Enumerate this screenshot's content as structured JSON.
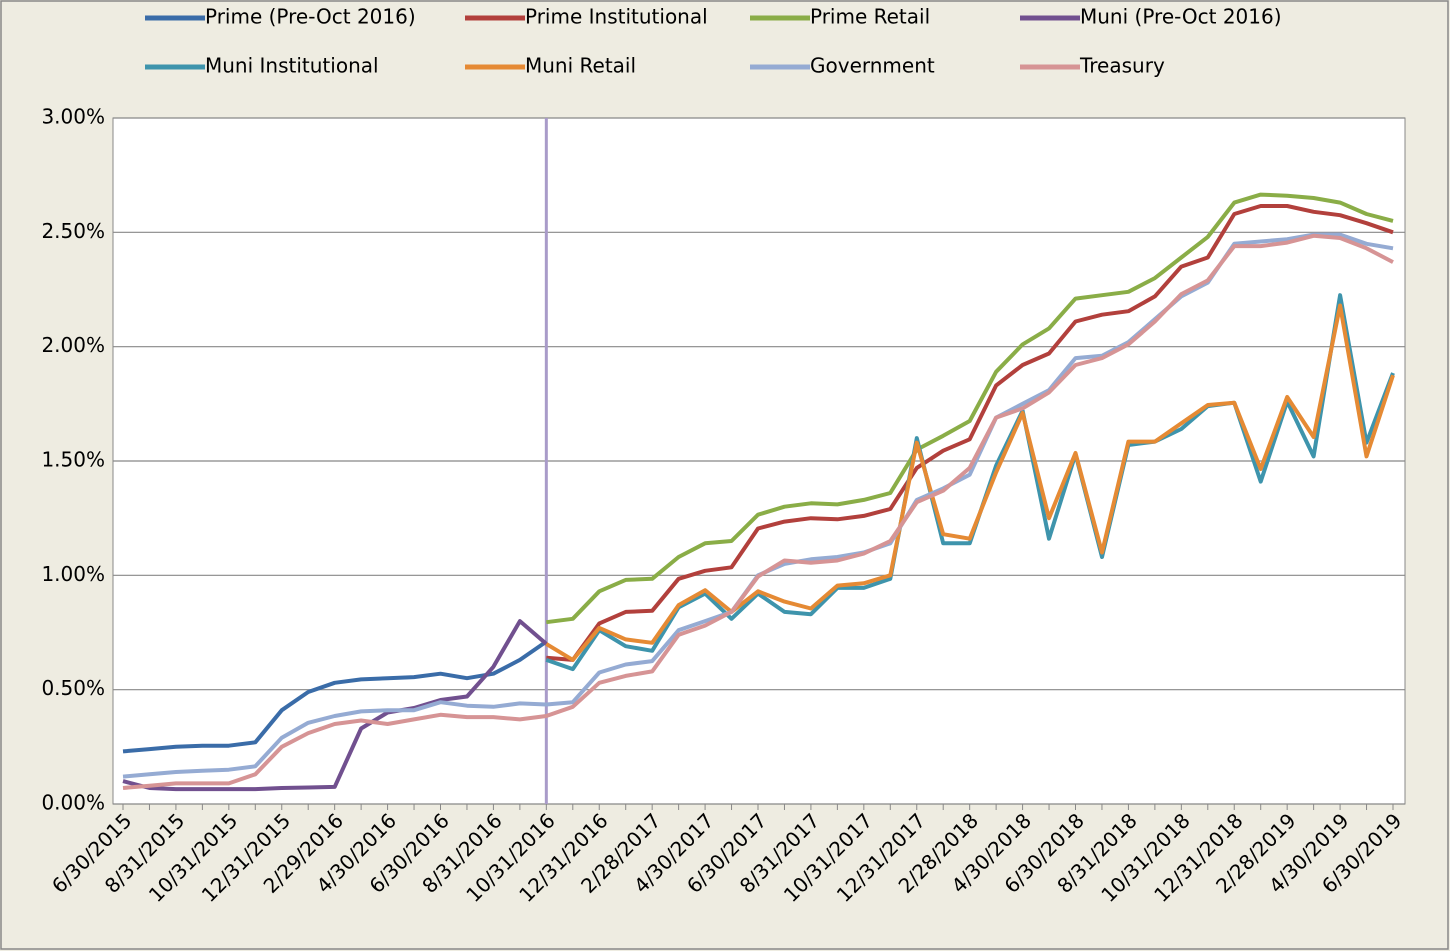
{
  "chart_data": {
    "type": "line",
    "categories": [
      "6/30/2015",
      null,
      "8/31/2015",
      null,
      "10/31/2015",
      null,
      "12/31/2015",
      null,
      "2/29/2016",
      null,
      "4/30/2016",
      null,
      "6/30/2016",
      null,
      "8/31/2016",
      null,
      "10/31/2016",
      null,
      "12/31/2016",
      null,
      "2/28/2017",
      null,
      "4/30/2017",
      null,
      "6/30/2017",
      null,
      "8/31/2017",
      null,
      "10/31/2017",
      null,
      "12/31/2017",
      null,
      "2/28/2018",
      null,
      "4/30/2018",
      null,
      "6/30/2018",
      null,
      "8/31/2018",
      null,
      "10/31/2018",
      null,
      "12/31/2018",
      null,
      "2/28/2019",
      null,
      "4/30/2019",
      null,
      "6/30/2019"
    ],
    "ylim": [
      0,
      3
    ],
    "yticks": [
      {
        "value": 0,
        "label": "0.00%"
      },
      {
        "value": 0.5,
        "label": "0.50%"
      },
      {
        "value": 1,
        "label": "1.00%"
      },
      {
        "value": 1.5,
        "label": "1.50%"
      },
      {
        "value": 2,
        "label": "2.00%"
      },
      {
        "value": 2.5,
        "label": "2.50%"
      },
      {
        "value": 3,
        "label": "3.00%"
      }
    ],
    "grid": true,
    "vertical_line": {
      "at": "10/31/2016",
      "color": "#a99bc9"
    },
    "series": [
      {
        "name": "Prime (Pre-Oct 2016)",
        "color": "#3a6ca8",
        "values": [
          0.23,
          0.24,
          0.25,
          0.255,
          0.255,
          0.27,
          0.41,
          0.49,
          0.53,
          0.545,
          0.55,
          0.555,
          0.57,
          0.55,
          0.57,
          0.63,
          0.71,
          null,
          null,
          null,
          null,
          null,
          null,
          null,
          null,
          null,
          null,
          null,
          null,
          null,
          null,
          null,
          null,
          null,
          null,
          null,
          null,
          null,
          null,
          null,
          null,
          null,
          null,
          null,
          null,
          null,
          null,
          null,
          null
        ]
      },
      {
        "name": "Prime Institutional",
        "color": "#b2403c",
        "values": [
          null,
          null,
          null,
          null,
          null,
          null,
          null,
          null,
          null,
          null,
          null,
          null,
          null,
          null,
          null,
          null,
          0.64,
          0.63,
          0.79,
          0.84,
          0.845,
          0.985,
          1.02,
          1.035,
          1.205,
          1.235,
          1.25,
          1.245,
          1.26,
          1.29,
          1.47,
          1.545,
          1.595,
          1.83,
          1.92,
          1.97,
          2.11,
          2.14,
          2.155,
          2.22,
          2.35,
          2.39,
          2.58,
          2.615,
          2.615,
          2.59,
          2.575,
          2.54,
          2.5
        ]
      },
      {
        "name": "Prime Retail",
        "color": "#8aad47",
        "values": [
          null,
          null,
          null,
          null,
          null,
          null,
          null,
          null,
          null,
          null,
          null,
          null,
          null,
          null,
          null,
          null,
          0.795,
          0.81,
          0.93,
          0.98,
          0.985,
          1.08,
          1.14,
          1.15,
          1.265,
          1.3,
          1.315,
          1.31,
          1.33,
          1.36,
          1.55,
          1.61,
          1.675,
          1.89,
          2.01,
          2.08,
          2.21,
          2.225,
          2.24,
          2.3,
          2.39,
          2.48,
          2.63,
          2.665,
          2.66,
          2.65,
          2.63,
          2.58,
          2.55
        ]
      },
      {
        "name": "Muni (Pre-Oct 2016)",
        "color": "#71508f",
        "values": [
          0.1,
          0.07,
          0.065,
          0.065,
          0.065,
          0.065,
          0.07,
          0.072,
          0.075,
          0.33,
          0.4,
          0.42,
          0.455,
          0.47,
          0.6,
          0.8,
          0.7,
          null,
          null,
          null,
          null,
          null,
          null,
          null,
          null,
          null,
          null,
          null,
          null,
          null,
          null,
          null,
          null,
          null,
          null,
          null,
          null,
          null,
          null,
          null,
          null,
          null,
          null,
          null,
          null,
          null,
          null,
          null,
          null
        ]
      },
      {
        "name": "Muni Institutional",
        "color": "#3e94ac",
        "values": [
          null,
          null,
          null,
          null,
          null,
          null,
          null,
          null,
          null,
          null,
          null,
          null,
          null,
          null,
          null,
          null,
          0.63,
          0.59,
          0.76,
          0.69,
          0.67,
          0.86,
          0.92,
          0.81,
          0.92,
          0.84,
          0.83,
          0.945,
          0.945,
          0.985,
          1.6,
          1.14,
          1.14,
          1.48,
          1.72,
          1.16,
          1.53,
          1.08,
          1.57,
          1.585,
          1.64,
          1.74,
          1.755,
          1.41,
          1.76,
          1.52,
          2.225,
          1.58,
          1.885
        ]
      },
      {
        "name": "Muni Retail",
        "color": "#e58a34",
        "values": [
          null,
          null,
          null,
          null,
          null,
          null,
          null,
          null,
          null,
          null,
          null,
          null,
          null,
          null,
          null,
          null,
          0.7,
          0.63,
          0.77,
          0.72,
          0.705,
          0.87,
          0.935,
          0.84,
          0.93,
          0.885,
          0.855,
          0.955,
          0.965,
          1.0,
          1.58,
          1.18,
          1.16,
          1.45,
          1.71,
          1.25,
          1.535,
          1.1,
          1.585,
          1.585,
          1.665,
          1.745,
          1.755,
          1.465,
          1.78,
          1.605,
          2.18,
          1.52,
          1.875
        ]
      },
      {
        "name": "Government",
        "color": "#95abd3",
        "values": [
          0.12,
          0.13,
          0.14,
          0.145,
          0.15,
          0.165,
          0.29,
          0.355,
          0.385,
          0.405,
          0.41,
          0.41,
          0.445,
          0.43,
          0.425,
          0.44,
          0.435,
          0.445,
          0.575,
          0.61,
          0.625,
          0.76,
          0.8,
          0.84,
          1.0,
          1.05,
          1.07,
          1.08,
          1.1,
          1.14,
          1.33,
          1.38,
          1.44,
          1.69,
          1.75,
          1.81,
          1.95,
          1.96,
          2.02,
          2.12,
          2.22,
          2.28,
          2.45,
          2.46,
          2.47,
          2.49,
          2.49,
          2.45,
          2.43
        ]
      },
      {
        "name": "Treasury",
        "color": "#d69495",
        "values": [
          0.07,
          0.08,
          0.09,
          0.09,
          0.09,
          0.13,
          0.25,
          0.31,
          0.35,
          0.365,
          0.35,
          0.37,
          0.39,
          0.38,
          0.38,
          0.37,
          0.385,
          0.425,
          0.53,
          0.56,
          0.58,
          0.74,
          0.78,
          0.84,
          0.995,
          1.065,
          1.055,
          1.065,
          1.095,
          1.15,
          1.32,
          1.37,
          1.47,
          1.69,
          1.73,
          1.8,
          1.92,
          1.95,
          2.01,
          2.11,
          2.23,
          2.29,
          2.44,
          2.44,
          2.455,
          2.485,
          2.475,
          2.43,
          2.37
        ]
      }
    ]
  }
}
